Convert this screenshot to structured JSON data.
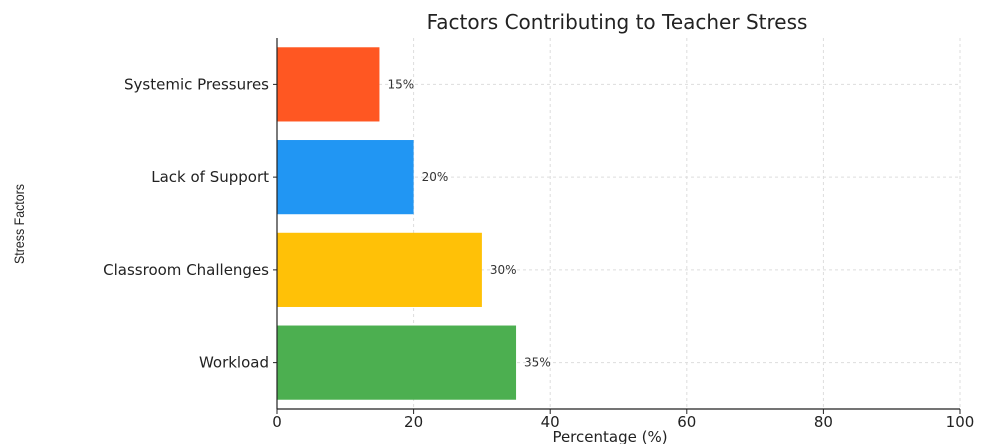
{
  "chart_data": {
    "type": "bar",
    "orientation": "horizontal",
    "title": "Factors Contributing to Teacher Stress",
    "xlabel": "Percentage (%)",
    "ylabel": "Stress Factors",
    "xlim": [
      0,
      100
    ],
    "xticks": [
      0,
      20,
      40,
      60,
      80,
      100
    ],
    "grid": true,
    "categories": [
      "Workload",
      "Classroom Challenges",
      "Lack of Support",
      "Systemic Pressures"
    ],
    "values": [
      35,
      30,
      20,
      15
    ],
    "value_labels": [
      "35%",
      "30%",
      "20%",
      "15%"
    ],
    "colors": [
      "#4caf50",
      "#ffc107",
      "#2196f3",
      "#ff5722"
    ]
  }
}
